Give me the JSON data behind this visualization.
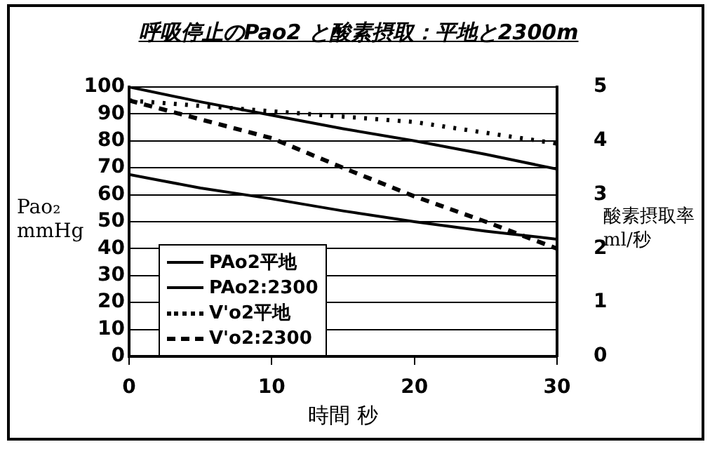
{
  "chart_data": {
    "type": "line",
    "title": "呼吸停止のPao2 と酸素摂取：平地と2300m",
    "xlabel": "時間 秒",
    "ylabel": "Pao₂\nmmHg",
    "y2label": "酸素摂取率\nml/秒",
    "x": [
      0,
      5,
      10,
      15,
      20,
      25,
      30
    ],
    "series": [
      {
        "name": "PAo2平地",
        "color": "#000000",
        "line_style": "solid",
        "values": [
          100,
          94.5,
          89.5,
          84.5,
          80,
          75,
          69.5
        ]
      },
      {
        "name": "PAo2:2300",
        "color": "#000000",
        "line_style": "solid",
        "values": [
          67.5,
          62.5,
          58.5,
          54,
          50,
          46.5,
          43.5
        ]
      },
      {
        "name": "V'o2平地",
        "color": "#000000",
        "line_style": "dotted",
        "axis": "y2",
        "values": [
          4.75,
          4.65,
          4.55,
          4.45,
          4.35,
          4.15,
          3.95
        ]
      },
      {
        "name": "V'o2:2300",
        "color": "#000000",
        "line_style": "dashed",
        "axis": "y2",
        "values": [
          4.75,
          4.4,
          4.05,
          3.5,
          2.97,
          2.5,
          2.0
        ]
      }
    ],
    "xlim": [
      0,
      30
    ],
    "xticks": [
      0,
      10,
      20,
      30
    ],
    "ylim": [
      0,
      100
    ],
    "yticks": [
      0,
      10,
      20,
      30,
      40,
      50,
      60,
      70,
      80,
      90,
      100
    ],
    "y2lim": [
      0,
      5
    ],
    "y2ticks": [
      0,
      1,
      2,
      3,
      4,
      5
    ],
    "grid": "y",
    "legend": "bottom left",
    "marker": "none"
  }
}
